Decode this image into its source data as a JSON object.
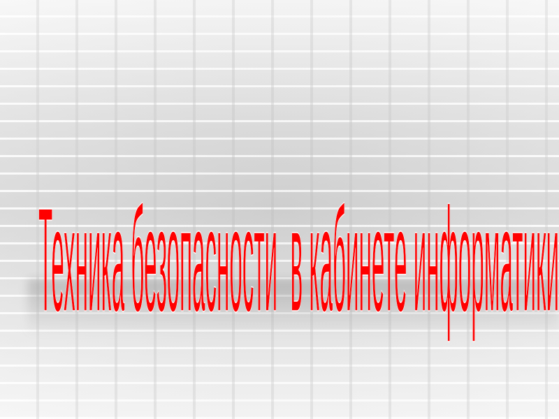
{
  "slide": {
    "title": "Техника безопасности  в кабинете информатики",
    "title_color": "#ff0000"
  }
}
